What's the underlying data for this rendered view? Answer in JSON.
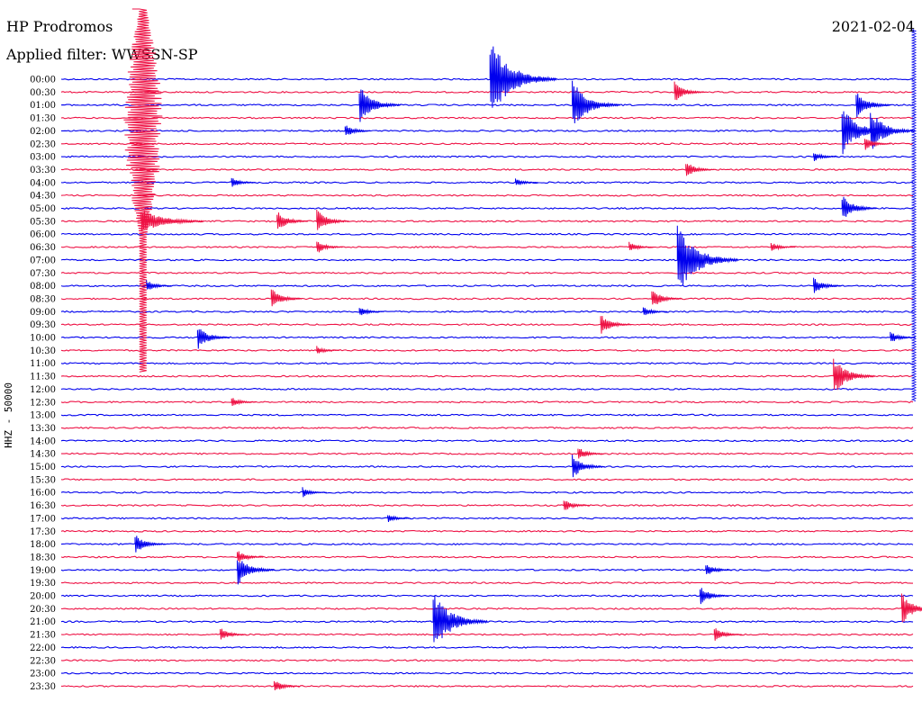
{
  "header": {
    "station": "HP Prodromos",
    "date": "2021-02-04",
    "filter_label": "Applied filter: WWSSN-SP",
    "channel_label": "HHZ - 50000"
  },
  "chart_data": {
    "type": "line",
    "title": "HP Prodromos",
    "subtitle": "Applied filter: WWSSN-SP",
    "ylabel": "HHZ - 50000",
    "xlabel": "",
    "rows": [
      "00:00",
      "00:30",
      "01:00",
      "01:30",
      "02:00",
      "02:30",
      "03:00",
      "03:30",
      "04:00",
      "04:30",
      "05:00",
      "05:30",
      "06:00",
      "06:30",
      "07:00",
      "07:30",
      "08:00",
      "08:30",
      "09:00",
      "09:30",
      "10:00",
      "10:30",
      "11:00",
      "11:30",
      "12:00",
      "12:30",
      "13:00",
      "13:30",
      "14:00",
      "14:30",
      "15:00",
      "15:30",
      "16:00",
      "16:30",
      "17:00",
      "17:30",
      "18:00",
      "18:30",
      "19:00",
      "19:30",
      "20:00",
      "20:30",
      "21:00",
      "21:30",
      "22:00",
      "22:30",
      "23:00",
      "23:30"
    ],
    "row_minutes": 30,
    "colors": [
      "#0000ee",
      "#ee1144"
    ],
    "grid": false,
    "events": [
      {
        "row": 0,
        "minute": 15.1,
        "amplitude": 45
      },
      {
        "row": 1,
        "minute": 21.6,
        "amplitude": 12
      },
      {
        "row": 2,
        "minute": 10.5,
        "amplitude": 22
      },
      {
        "row": 2,
        "minute": 18.0,
        "amplitude": 28
      },
      {
        "row": 2,
        "minute": 28.0,
        "amplitude": 16
      },
      {
        "row": 4,
        "minute": 10.0,
        "amplitude": 8
      },
      {
        "row": 4,
        "minute": 27.5,
        "amplitude": 28
      },
      {
        "row": 4,
        "minute": 28.5,
        "amplitude": 25
      },
      {
        "row": 5,
        "minute": 28.3,
        "amplitude": 8
      },
      {
        "row": 6,
        "minute": 26.5,
        "amplitude": 6
      },
      {
        "row": 7,
        "minute": 22.0,
        "amplitude": 10
      },
      {
        "row": 8,
        "minute": 6.0,
        "amplitude": 6
      },
      {
        "row": 8,
        "minute": 16.0,
        "amplitude": 5
      },
      {
        "row": 10,
        "minute": 27.5,
        "amplitude": 16
      },
      {
        "row": 11,
        "minute": 7.6,
        "amplitude": 12
      },
      {
        "row": 11,
        "minute": 9.0,
        "amplitude": 14
      },
      {
        "row": 13,
        "minute": 9.0,
        "amplitude": 8
      },
      {
        "row": 13,
        "minute": 20.0,
        "amplitude": 6
      },
      {
        "row": 13,
        "minute": 25.0,
        "amplitude": 6
      },
      {
        "row": 14,
        "minute": 21.7,
        "amplitude": 40
      },
      {
        "row": 16,
        "minute": 3.0,
        "amplitude": 7
      },
      {
        "row": 16,
        "minute": 26.5,
        "amplitude": 10
      },
      {
        "row": 17,
        "minute": 7.4,
        "amplitude": 12
      },
      {
        "row": 17,
        "minute": 20.8,
        "amplitude": 12
      },
      {
        "row": 18,
        "minute": 10.5,
        "amplitude": 6
      },
      {
        "row": 18,
        "minute": 20.5,
        "amplitude": 6
      },
      {
        "row": 19,
        "minute": 19.0,
        "amplitude": 12
      },
      {
        "row": 20,
        "minute": 4.8,
        "amplitude": 14
      },
      {
        "row": 20,
        "minute": 29.2,
        "amplitude": 7
      },
      {
        "row": 21,
        "minute": 9.0,
        "amplitude": 5
      },
      {
        "row": 23,
        "minute": 27.2,
        "amplitude": 22
      },
      {
        "row": 25,
        "minute": 6.0,
        "amplitude": 6
      },
      {
        "row": 29,
        "minute": 18.2,
        "amplitude": 8
      },
      {
        "row": 30,
        "minute": 18.0,
        "amplitude": 14
      },
      {
        "row": 32,
        "minute": 8.5,
        "amplitude": 6
      },
      {
        "row": 33,
        "minute": 17.7,
        "amplitude": 8
      },
      {
        "row": 34,
        "minute": 11.5,
        "amplitude": 5
      },
      {
        "row": 36,
        "minute": 2.6,
        "amplitude": 12
      },
      {
        "row": 37,
        "minute": 6.2,
        "amplitude": 8
      },
      {
        "row": 38,
        "minute": 6.2,
        "amplitude": 18
      },
      {
        "row": 38,
        "minute": 22.7,
        "amplitude": 8
      },
      {
        "row": 40,
        "minute": 22.5,
        "amplitude": 11
      },
      {
        "row": 41,
        "minute": 29.6,
        "amplitude": 18
      },
      {
        "row": 42,
        "minute": 13.1,
        "amplitude": 34
      },
      {
        "row": 43,
        "minute": 5.6,
        "amplitude": 8
      },
      {
        "row": 43,
        "minute": 23.0,
        "amplitude": 9
      },
      {
        "row": 47,
        "minute": 7.5,
        "amplitude": 8
      }
    ],
    "large_event": {
      "start_row": 0,
      "end_row": 23,
      "minute": 2.5
    }
  }
}
